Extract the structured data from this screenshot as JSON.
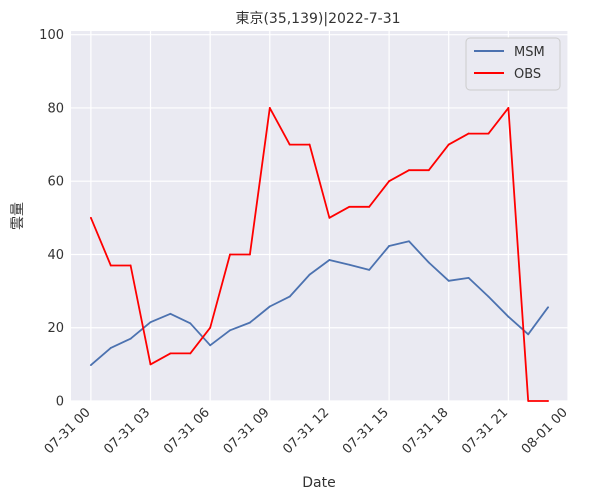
{
  "chart_data": {
    "type": "line",
    "title": "東京(35,139)|2022-7-31",
    "xlabel": "Date",
    "ylabel": "雲量",
    "ylim": [
      0,
      101
    ],
    "xlim_hours": [
      -1,
      24
    ],
    "grid": true,
    "legend_position": "top-right",
    "x_ticks": [
      {
        "hour": 0,
        "label": "07-31 00"
      },
      {
        "hour": 3,
        "label": "07-31 03"
      },
      {
        "hour": 6,
        "label": "07-31 06"
      },
      {
        "hour": 9,
        "label": "07-31 09"
      },
      {
        "hour": 12,
        "label": "07-31 12"
      },
      {
        "hour": 15,
        "label": "07-31 15"
      },
      {
        "hour": 18,
        "label": "07-31 18"
      },
      {
        "hour": 21,
        "label": "07-31 21"
      },
      {
        "hour": 24,
        "label": "08-01 00"
      }
    ],
    "y_ticks": [
      0,
      20,
      40,
      60,
      80,
      100
    ],
    "x": [
      0,
      1,
      2,
      3,
      4,
      5,
      6,
      7,
      8,
      9,
      10,
      11,
      12,
      13,
      14,
      15,
      16,
      17,
      18,
      19,
      20,
      21,
      22,
      23
    ],
    "series": [
      {
        "name": "MSM",
        "color": "#4c72b0",
        "values": [
          9.8,
          14.5,
          17,
          21.5,
          23.8,
          21.2,
          15.2,
          19.3,
          21.4,
          25.8,
          28.5,
          34.5,
          38.5,
          37.2,
          35.8,
          42.3,
          43.6,
          37.8,
          32.8,
          33.6,
          28.5,
          23,
          18.2,
          25.6
        ]
      },
      {
        "name": "OBS",
        "color": "#ff0000",
        "values": [
          50,
          37,
          37,
          10,
          13,
          13,
          20,
          40,
          40,
          80,
          70,
          70,
          50,
          53,
          53,
          60,
          63,
          63,
          70,
          73,
          73,
          80,
          0,
          0
        ]
      }
    ]
  },
  "colors": {
    "plot_background": "#eaeaf2",
    "grid": "#ffffff",
    "text": "#333333"
  }
}
